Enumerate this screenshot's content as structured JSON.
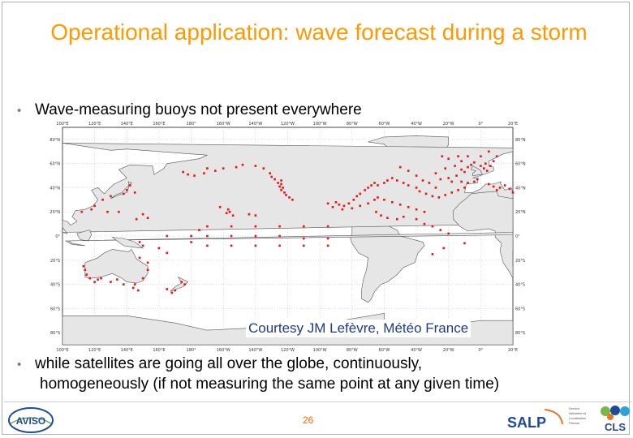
{
  "slide": {
    "title": "Operational application: wave forecast during a storm",
    "bullet1": "Wave-measuring buoys not present everywhere",
    "bullet2_line1": "while satellites are going all over the globe, continuously,",
    "bullet2_line2": "homogeneously (if not measuring the same point at any given time)",
    "bullet_symbol": "•",
    "courtesy": "Courtesy  JM Lefèvre, Météo France",
    "page_number": "26"
  },
  "map": {
    "ocean_color": "#ffffff",
    "land_color": "#e6e6e6",
    "buoy_color": "#ee1111",
    "top_labels": [
      "100°E",
      "120°E",
      "140°E",
      "160°E",
      "180°",
      "160°W",
      "140°W",
      "120°W",
      "100°W",
      "80°W",
      "60°W",
      "40°W",
      "20°W",
      "0°",
      "20°E"
    ],
    "bottom_labels": [
      "100°E",
      "120°E",
      "140°E",
      "160°E",
      "180°",
      "160°W",
      "140°W",
      "120°W",
      "100°W",
      "80°W",
      "60°W",
      "40°W",
      "20°W",
      "0°",
      "20°E"
    ],
    "left_labels": [
      "80°N",
      "60°N",
      "40°N",
      "20°N",
      "0°",
      "20°S",
      "40°S",
      "60°S",
      "80°S"
    ],
    "right_labels": [
      "80°N",
      "60°N",
      "40°N",
      "20°N",
      "0°",
      "20°S",
      "40°S",
      "60°S",
      "80°S"
    ]
  },
  "logos": {
    "aviso": "AVISO",
    "salp": "SALP",
    "salp_small": [
      "Service",
      "Altimétrie et",
      "Localisation",
      "Précise"
    ],
    "cls": "CLS"
  }
}
